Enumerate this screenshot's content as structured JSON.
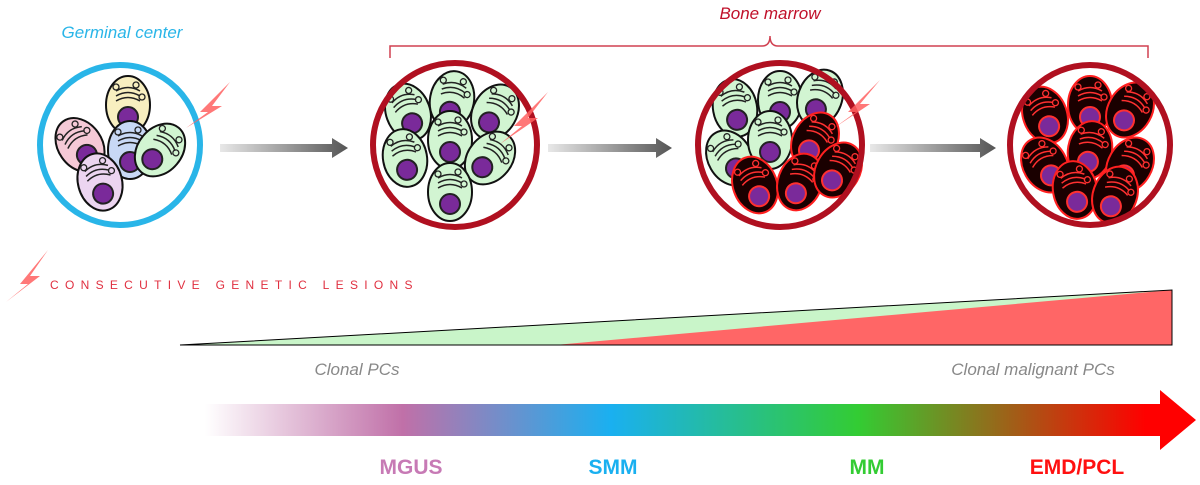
{
  "labels": {
    "germinal_center": "Germinal center",
    "bone_marrow": "Bone marrow",
    "lesions": "CONSECUTIVE GENETIC LESIONS",
    "clonal_pcs": "Clonal PCs",
    "clonal_malignant_pcs": "Clonal malignant PCs"
  },
  "stages": [
    "MGUS",
    "SMM",
    "MM",
    "EMD/PCL"
  ]
}
